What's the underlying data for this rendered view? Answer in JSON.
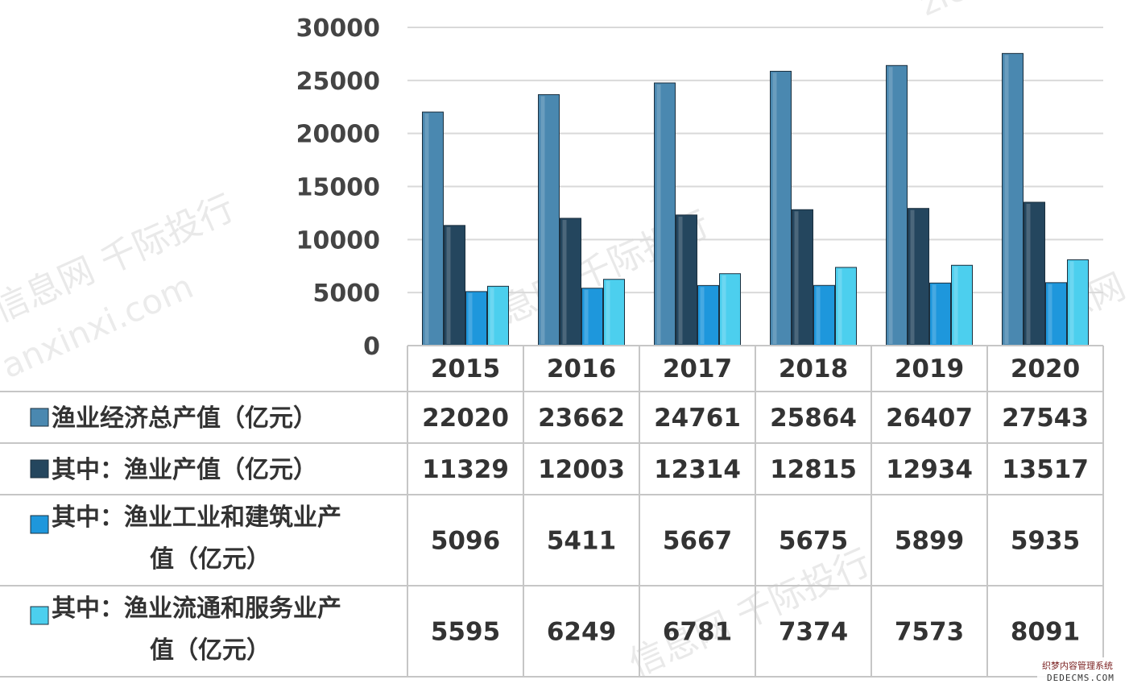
{
  "chart_data": {
    "type": "bar",
    "title": "",
    "xlabel": "",
    "ylabel": "",
    "ylim": [
      0,
      30000
    ],
    "yticks": [
      "30000",
      "25000",
      "20000",
      "15000",
      "10000",
      "5000",
      "0"
    ],
    "grid": true,
    "legend_placement": "data-table-left",
    "categories": [
      "2015",
      "2016",
      "2017",
      "2018",
      "2019",
      "2020"
    ],
    "series": [
      {
        "name": "渔业经济总产值（亿元）",
        "values": [
          22020,
          23662,
          24761,
          25864,
          26407,
          27543
        ],
        "color": "#4a88b0"
      },
      {
        "name": "其中：渔业产值（亿元）",
        "values": [
          11329,
          12003,
          12314,
          12815,
          12934,
          13517
        ],
        "color": "#24465e"
      },
      {
        "name": "其中：渔业工业和建筑业产值（亿元）",
        "values": [
          5096,
          5411,
          5667,
          5675,
          5899,
          5935
        ],
        "color": "#1e97dc"
      },
      {
        "name": "其中：渔业流通和服务业产值（亿元）",
        "values": [
          5595,
          6249,
          6781,
          7374,
          7573,
          8091
        ],
        "color": "#4ccfee"
      }
    ]
  },
  "watermark": {
    "text1": "信息网 千际投行",
    "text2": "anxinxi.com",
    "text3": "zichanxinxi.com"
  },
  "corner_badge": {
    "line1": "织梦内容管理系统",
    "line2": "DEDECMS.COM"
  }
}
